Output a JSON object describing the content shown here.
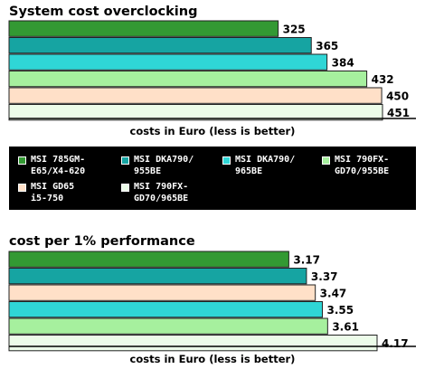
{
  "chart_data": [
    {
      "type": "bar",
      "orientation": "horizontal",
      "title": "System cost overclocking",
      "xlabel": "costs in Euro (less is better)",
      "categories": [
        "MSI 785GM-E65/X4-620",
        "MSI DKA790/955BE",
        "MSI DKA790/965BE",
        "MSI 790FX-GD70/955BE",
        "MSI GD65 i5-750",
        "MSI 790FX-GD70/965BE"
      ],
      "values": [
        325,
        365,
        384,
        432,
        450,
        451
      ],
      "labels": [
        "325",
        "365",
        "384",
        "432",
        "450",
        "451"
      ],
      "colors": [
        "#339933",
        "#16a4a2",
        "#2fd6d6",
        "#a6f09e",
        "#ffe0c8",
        "#ecfce9"
      ],
      "xlim": [
        0,
        451
      ]
    },
    {
      "type": "bar",
      "orientation": "horizontal",
      "title": "cost per 1% performance",
      "xlabel": "costs in Euro (less is better)",
      "categories": [
        "MSI 785GM-E65/X4-620",
        "MSI DKA790/955BE",
        "MSI GD65 i5-750",
        "MSI DKA790/965BE",
        "MSI 790FX-GD70/955BE",
        "MSI 790FX-GD70/965BE"
      ],
      "values": [
        3.17,
        3.37,
        3.47,
        3.55,
        3.61,
        4.17
      ],
      "labels": [
        "3.17",
        "3.37",
        "3.47",
        "3.55",
        "3.61",
        "4.17"
      ],
      "colors": [
        "#339933",
        "#16a4a2",
        "#ffe0c8",
        "#2fd6d6",
        "#a6f09e",
        "#ecfce9"
      ],
      "xlim": [
        0,
        4.17
      ]
    }
  ],
  "legend": [
    {
      "label": "MSI 785GM-\nE65/X4-620",
      "color": "#339933"
    },
    {
      "label": "MSI DKA790/\n955BE",
      "color": "#16a4a2"
    },
    {
      "label": "MSI DKA790/\n965BE",
      "color": "#2fd6d6"
    },
    {
      "label": "MSI 790FX-\nGD70/955BE",
      "color": "#a6f09e"
    },
    {
      "label": "MSI GD65\ni5-750",
      "color": "#ffe0c8"
    },
    {
      "label": "MSI 790FX-\nGD70/965BE",
      "color": "#ecfce9"
    }
  ]
}
